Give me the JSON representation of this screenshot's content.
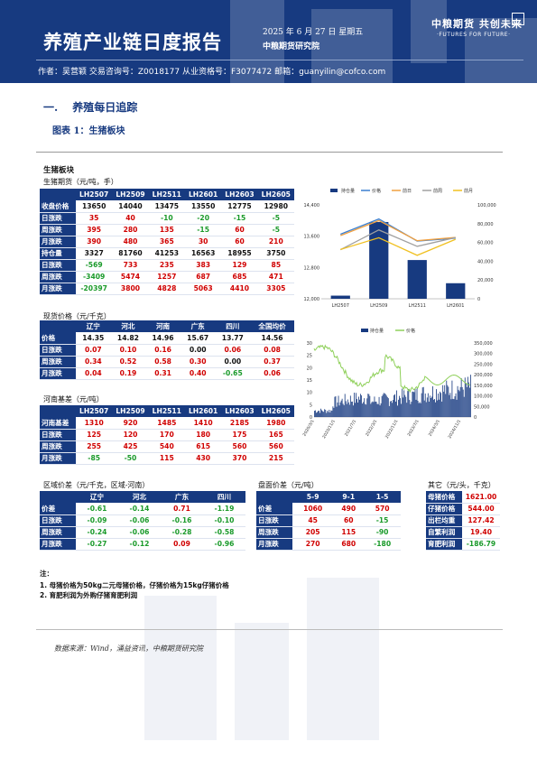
{
  "header": {
    "title": "养殖产业链日度报告",
    "date": "2025 年 6 月 27 日 星期五",
    "org": "中粮期货研究院",
    "logo_cn": "中粮期货  共创未来",
    "logo_en": "·FUTURES FOR FUTURE·",
    "authors": "作者：吴营颖    交易咨询号：Z0018177 从业资格号：F3077472    邮箱：guanyilin@cofco.com"
  },
  "section": {
    "num": "一.",
    "title": "养殖每日追踪"
  },
  "figure_title": "图表 1：生猪板块",
  "panel_title": "生猪板块",
  "futures": {
    "label": "生猪期货（元/吨，手）",
    "columns": [
      "",
      "LH2507",
      "LH2509",
      "LH2511",
      "LH2601",
      "LH2603",
      "LH2605"
    ],
    "rows": [
      {
        "name": "收盘价格",
        "cells": [
          [
            "13650",
            "k"
          ],
          [
            "14040",
            "k"
          ],
          [
            "13475",
            "k"
          ],
          [
            "13550",
            "k"
          ],
          [
            "12775",
            "k"
          ],
          [
            "12980",
            "k"
          ]
        ]
      },
      {
        "name": "日涨跌",
        "cells": [
          [
            "35",
            "r"
          ],
          [
            "40",
            "r"
          ],
          [
            "-10",
            "g"
          ],
          [
            "-20",
            "g"
          ],
          [
            "-15",
            "g"
          ],
          [
            "-5",
            "g"
          ]
        ]
      },
      {
        "name": "周涨跌",
        "cells": [
          [
            "395",
            "r"
          ],
          [
            "280",
            "r"
          ],
          [
            "135",
            "r"
          ],
          [
            "-15",
            "g"
          ],
          [
            "60",
            "r"
          ],
          [
            "-5",
            "g"
          ]
        ]
      },
      {
        "name": "月涨跌",
        "cells": [
          [
            "390",
            "r"
          ],
          [
            "480",
            "r"
          ],
          [
            "365",
            "r"
          ],
          [
            "30",
            "r"
          ],
          [
            "60",
            "r"
          ],
          [
            "210",
            "r"
          ]
        ]
      },
      {
        "name": "持仓量",
        "cells": [
          [
            "3327",
            "k"
          ],
          [
            "81760",
            "k"
          ],
          [
            "41253",
            "k"
          ],
          [
            "16563",
            "k"
          ],
          [
            "18955",
            "k"
          ],
          [
            "3750",
            "k"
          ]
        ]
      },
      {
        "name": "日涨跌",
        "cells": [
          [
            "-569",
            "g"
          ],
          [
            "733",
            "r"
          ],
          [
            "235",
            "r"
          ],
          [
            "383",
            "r"
          ],
          [
            "129",
            "r"
          ],
          [
            "85",
            "r"
          ]
        ]
      },
      {
        "name": "周涨跌",
        "cells": [
          [
            "-3409",
            "g"
          ],
          [
            "5474",
            "r"
          ],
          [
            "1257",
            "r"
          ],
          [
            "687",
            "r"
          ],
          [
            "685",
            "r"
          ],
          [
            "471",
            "r"
          ]
        ]
      },
      {
        "name": "月涨跌",
        "cells": [
          [
            "-20397",
            "g"
          ],
          [
            "3800",
            "r"
          ],
          [
            "4828",
            "r"
          ],
          [
            "5063",
            "r"
          ],
          [
            "4410",
            "r"
          ],
          [
            "3305",
            "r"
          ]
        ]
      }
    ]
  },
  "spot": {
    "label": "现货价格（元/千克）",
    "columns": [
      "",
      "辽宁",
      "河北",
      "河南",
      "广东",
      "四川",
      "全国均价"
    ],
    "rows": [
      {
        "name": "价格",
        "cells": [
          [
            "14.35",
            "k"
          ],
          [
            "14.82",
            "k"
          ],
          [
            "14.96",
            "k"
          ],
          [
            "15.67",
            "k"
          ],
          [
            "13.77",
            "k"
          ],
          [
            "14.56",
            "k"
          ]
        ]
      },
      {
        "name": "日涨跌",
        "cells": [
          [
            "0.07",
            "r"
          ],
          [
            "0.10",
            "r"
          ],
          [
            "0.16",
            "r"
          ],
          [
            "0.00",
            "k"
          ],
          [
            "0.06",
            "r"
          ],
          [
            "0.08",
            "r"
          ]
        ]
      },
      {
        "name": "周涨跌",
        "cells": [
          [
            "0.34",
            "r"
          ],
          [
            "0.52",
            "r"
          ],
          [
            "0.58",
            "r"
          ],
          [
            "0.30",
            "r"
          ],
          [
            "0.00",
            "k"
          ],
          [
            "0.37",
            "r"
          ]
        ]
      },
      {
        "name": "月涨跌",
        "cells": [
          [
            "0.04",
            "r"
          ],
          [
            "0.19",
            "r"
          ],
          [
            "0.31",
            "r"
          ],
          [
            "0.40",
            "r"
          ],
          [
            "-0.65",
            "g"
          ],
          [
            "0.06",
            "r"
          ]
        ]
      }
    ]
  },
  "basis": {
    "label": "河南基差（元/吨）",
    "columns": [
      "",
      "LH2507",
      "LH2509",
      "LH2511",
      "LH2601",
      "LH2603",
      "LH2605"
    ],
    "rows": [
      {
        "name": "河南基差",
        "cells": [
          [
            "1310",
            "r"
          ],
          [
            "920",
            "r"
          ],
          [
            "1485",
            "r"
          ],
          [
            "1410",
            "r"
          ],
          [
            "2185",
            "r"
          ],
          [
            "1980",
            "r"
          ]
        ]
      },
      {
        "name": "日涨跌",
        "cells": [
          [
            "125",
            "r"
          ],
          [
            "120",
            "r"
          ],
          [
            "170",
            "r"
          ],
          [
            "180",
            "r"
          ],
          [
            "175",
            "r"
          ],
          [
            "165",
            "r"
          ]
        ]
      },
      {
        "name": "周涨跌",
        "cells": [
          [
            "255",
            "r"
          ],
          [
            "425",
            "r"
          ],
          [
            "540",
            "r"
          ],
          [
            "615",
            "r"
          ],
          [
            "560",
            "r"
          ],
          [
            "560",
            "r"
          ]
        ]
      },
      {
        "name": "月涨跌",
        "cells": [
          [
            "-85",
            "g"
          ],
          [
            "-50",
            "g"
          ],
          [
            "115",
            "r"
          ],
          [
            "430",
            "r"
          ],
          [
            "370",
            "r"
          ],
          [
            "215",
            "r"
          ]
        ]
      }
    ]
  },
  "region": {
    "label": "区域价差（元/千克，区域-河南）",
    "columns": [
      "",
      "辽宁",
      "河北",
      "广东",
      "四川"
    ],
    "rows": [
      {
        "name": "价差",
        "cells": [
          [
            "-0.61",
            "g"
          ],
          [
            "-0.14",
            "g"
          ],
          [
            "0.71",
            "r"
          ],
          [
            "-1.19",
            "g"
          ]
        ]
      },
      {
        "name": "日涨跌",
        "cells": [
          [
            "-0.09",
            "g"
          ],
          [
            "-0.06",
            "g"
          ],
          [
            "-0.16",
            "g"
          ],
          [
            "-0.10",
            "g"
          ]
        ]
      },
      {
        "name": "周涨跌",
        "cells": [
          [
            "-0.24",
            "g"
          ],
          [
            "-0.06",
            "g"
          ],
          [
            "-0.28",
            "g"
          ],
          [
            "-0.58",
            "g"
          ]
        ]
      },
      {
        "name": "月涨跌",
        "cells": [
          [
            "-0.27",
            "g"
          ],
          [
            "-0.12",
            "g"
          ],
          [
            "0.09",
            "r"
          ],
          [
            "-0.96",
            "g"
          ]
        ]
      }
    ]
  },
  "spread": {
    "label": "盘面价差（元/吨）",
    "columns": [
      "",
      "5-9",
      "9-1",
      "1-5"
    ],
    "rows": [
      {
        "name": "价差",
        "cells": [
          [
            "1060",
            "r"
          ],
          [
            "490",
            "r"
          ],
          [
            "570",
            "r"
          ]
        ]
      },
      {
        "name": "日涨跌",
        "cells": [
          [
            "45",
            "r"
          ],
          [
            "60",
            "r"
          ],
          [
            "-15",
            "g"
          ]
        ]
      },
      {
        "name": "周涨跌",
        "cells": [
          [
            "205",
            "r"
          ],
          [
            "115",
            "r"
          ],
          [
            "-90",
            "g"
          ]
        ]
      },
      {
        "name": "月涨跌",
        "cells": [
          [
            "270",
            "r"
          ],
          [
            "680",
            "r"
          ],
          [
            "-180",
            "g"
          ]
        ]
      }
    ]
  },
  "other": {
    "label": "其它（元/头，千克）",
    "rows": [
      {
        "name": "母猪价格",
        "value": "1621.00",
        "cls": "r"
      },
      {
        "name": "仔猪价格",
        "value": "544.00",
        "cls": "r"
      },
      {
        "name": "出栏均重",
        "value": "127.42",
        "cls": "r"
      },
      {
        "name": "自繁利润",
        "value": "19.40",
        "cls": "r"
      },
      {
        "name": "育肥利润",
        "value": "-186.79",
        "cls": "g"
      }
    ]
  },
  "notes": {
    "title": "注：",
    "items": [
      "1. 母猪价格为50kg二元母猪价格，仔猪价格为15kg仔猪价格",
      "2. 育肥利润为外购仔猪育肥利润"
    ]
  },
  "source": "数据来源：Wind，涌益资讯，中粮期货研究院",
  "colors": {
    "navy": "#173a80",
    "red": "#d00000",
    "green": "#1a9a2a",
    "orange": "#f0a040",
    "yellow": "#f0c020",
    "gray": "#a0a0a0",
    "blue": "#3a7fd0"
  },
  "chart_data": [
    {
      "type": "bar",
      "categories": [
        "LH2507",
        "LH2509",
        "LH2511",
        "LH2601"
      ],
      "series": [
        {
          "name": "持仓量",
          "axis": "right",
          "values": [
            3327,
            81760,
            41253,
            16563
          ]
        },
        {
          "name": "价格",
          "axis": "left",
          "type": "line",
          "values": [
            13650,
            14040,
            13475,
            13550
          ]
        },
        {
          "name": "前日",
          "axis": "left",
          "type": "line",
          "values": [
            13615,
            14000,
            13485,
            13570
          ]
        },
        {
          "name": "前周",
          "axis": "left",
          "type": "line",
          "values": [
            13255,
            13760,
            13340,
            13565
          ]
        },
        {
          "name": "前月",
          "axis": "left",
          "type": "line",
          "values": [
            13260,
            13560,
            13110,
            13520
          ]
        }
      ],
      "y_left": {
        "ticks": [
          "12,000",
          "12,400",
          "12,800",
          "13,200",
          "13,600",
          "14,000",
          "14,400"
        ],
        "lim": [
          12000,
          14400
        ]
      },
      "y_right": {
        "ticks": [
          "0",
          "20,000",
          "40,000",
          "60,000",
          "80,000",
          "100,000"
        ],
        "lim": [
          0,
          100000
        ]
      },
      "legend": "top"
    },
    {
      "type": "bar",
      "series": [
        {
          "name": "持仓量",
          "axis": "right"
        },
        {
          "name": "价格",
          "axis": "left",
          "type": "line"
        }
      ],
      "x_ticks": [
        "2020/3/1",
        "2020/7/1",
        "2020/11/1",
        "2021/3/1",
        "2021/7/1",
        "2021/11/1",
        "2022/3/1",
        "2022/7/1",
        "2022/11/1",
        "2023/3/1",
        "2023/7/1",
        "2023/11/1",
        "2024/3/1",
        "2024/7/1",
        "2024/11/1",
        "2025/3/1"
      ],
      "y_left": {
        "ticks": [
          "0",
          "5",
          "10",
          "15",
          "20",
          "25",
          "30"
        ],
        "lim": [
          0,
          30
        ]
      },
      "y_right": {
        "ticks": [
          "0",
          "50,000",
          "100,000",
          "150,000",
          "200,000",
          "250,000",
          "300,000",
          "350,000"
        ],
        "lim": [
          0,
          350000
        ]
      },
      "legend": "top"
    }
  ]
}
